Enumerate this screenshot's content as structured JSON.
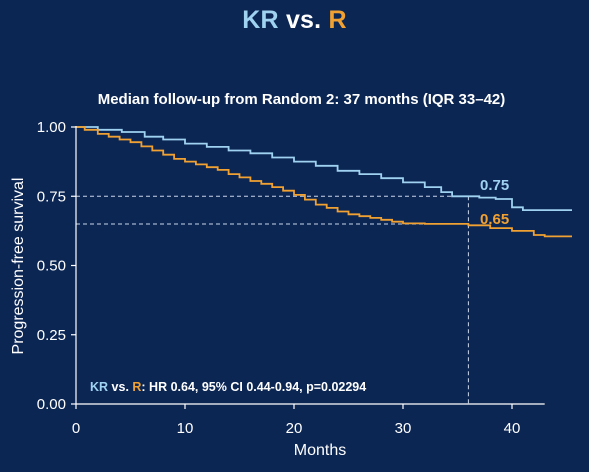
{
  "title": {
    "kr": "KR",
    "vs": " vs. ",
    "r": "R"
  },
  "colors": {
    "background": "#0c2654",
    "kr": "#9fd2f0",
    "r": "#f0a132",
    "axis": "#ffffff",
    "reference": "#c9d6ea"
  },
  "chart_data": {
    "type": "line",
    "subtitle": "Median follow-up from Random 2: 37 months (IQR 33–42)",
    "xlabel": "Months",
    "ylabel": "Progression-free survival",
    "xlim": [
      0,
      43
    ],
    "ylim": [
      0,
      1
    ],
    "x_ticks": [
      0,
      10,
      20,
      30,
      40
    ],
    "y_ticks": [
      0,
      0.25,
      0.5,
      0.75,
      1
    ],
    "y_tick_labels": [
      "0.00",
      "0.25",
      "0.50",
      "0.75",
      "1.00"
    ],
    "grid": false,
    "step": true,
    "reference_lines": {
      "x": 36,
      "y": [
        0.75,
        0.65
      ]
    },
    "series": [
      {
        "name": "KR",
        "points": [
          [
            0,
            1.0
          ],
          [
            1.5,
            1.0
          ],
          [
            2.0,
            0.99
          ],
          [
            4.0,
            0.99
          ],
          [
            4.2,
            0.982
          ],
          [
            6.0,
            0.982
          ],
          [
            6.3,
            0.965
          ],
          [
            8.0,
            0.955
          ],
          [
            10.0,
            0.94
          ],
          [
            12.0,
            0.928
          ],
          [
            14.0,
            0.915
          ],
          [
            16.0,
            0.905
          ],
          [
            18.0,
            0.89
          ],
          [
            20.0,
            0.875
          ],
          [
            22.0,
            0.86
          ],
          [
            24.0,
            0.842
          ],
          [
            26.0,
            0.83
          ],
          [
            28.0,
            0.815
          ],
          [
            30.0,
            0.8
          ],
          [
            32.0,
            0.783
          ],
          [
            33.5,
            0.765
          ],
          [
            34.5,
            0.75
          ],
          [
            37.0,
            0.745
          ],
          [
            38.5,
            0.74
          ],
          [
            40.0,
            0.71
          ],
          [
            41.0,
            0.7
          ],
          [
            45.5,
            0.7
          ]
        ],
        "end_label": "0.75"
      },
      {
        "name": "R",
        "points": [
          [
            0,
            1.0
          ],
          [
            0.8,
            0.99
          ],
          [
            2.0,
            0.975
          ],
          [
            3.0,
            0.965
          ],
          [
            4.0,
            0.955
          ],
          [
            5.0,
            0.945
          ],
          [
            6.0,
            0.93
          ],
          [
            7.0,
            0.915
          ],
          [
            8.0,
            0.9
          ],
          [
            9.0,
            0.885
          ],
          [
            10.0,
            0.875
          ],
          [
            11.0,
            0.865
          ],
          [
            12.0,
            0.855
          ],
          [
            13.0,
            0.845
          ],
          [
            14.0,
            0.83
          ],
          [
            15.0,
            0.818
          ],
          [
            16.0,
            0.805
          ],
          [
            17.0,
            0.795
          ],
          [
            18.0,
            0.783
          ],
          [
            19.0,
            0.77
          ],
          [
            20.0,
            0.755
          ],
          [
            21.0,
            0.738
          ],
          [
            22.0,
            0.72
          ],
          [
            23.0,
            0.708
          ],
          [
            24.0,
            0.695
          ],
          [
            25.0,
            0.685
          ],
          [
            26.0,
            0.678
          ],
          [
            27.0,
            0.672
          ],
          [
            28.0,
            0.665
          ],
          [
            29.0,
            0.658
          ],
          [
            30.0,
            0.652
          ],
          [
            32.0,
            0.65
          ],
          [
            34.0,
            0.65
          ],
          [
            36.0,
            0.645
          ],
          [
            38.0,
            0.635
          ],
          [
            40.0,
            0.625
          ],
          [
            42.0,
            0.61
          ],
          [
            43.0,
            0.605
          ],
          [
            45.5,
            0.605
          ]
        ],
        "end_label": "0.65"
      }
    ],
    "annotation": {
      "kr": "KR",
      "vs": " vs. ",
      "r": "R",
      "text": ": HR 0.64, 95% CI 0.44-0.94, p=0.02294"
    }
  }
}
